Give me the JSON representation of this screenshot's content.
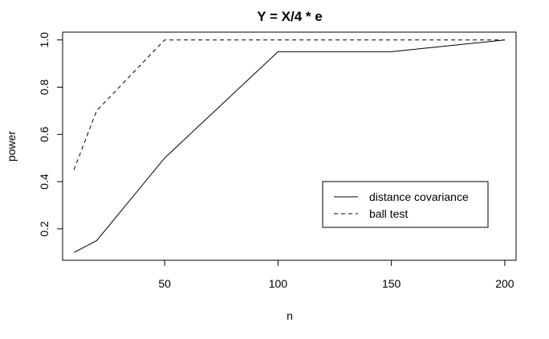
{
  "chart_data": {
    "type": "line",
    "title": "Y = X/4 * e",
    "xlabel": "n",
    "ylabel": "power",
    "xlim": [
      5,
      205
    ],
    "ylim": [
      0.067,
      1.033
    ],
    "x_ticks": [
      50,
      100,
      150,
      200
    ],
    "y_ticks": [
      0.2,
      0.4,
      0.6,
      0.8,
      1.0
    ],
    "x_tick_labels": [
      "50",
      "100",
      "150",
      "200"
    ],
    "y_tick_labels": [
      "0.2",
      "0.4",
      "0.6",
      "0.8",
      "1.0"
    ],
    "grid": false,
    "legend_position": "bottom-right",
    "series": [
      {
        "name": "distance covariance",
        "line_style": "solid",
        "color": "#000000",
        "x": [
          10,
          20,
          50,
          100,
          150,
          200
        ],
        "y": [
          0.1,
          0.15,
          0.5,
          0.95,
          0.95,
          1.0
        ]
      },
      {
        "name": "ball test",
        "line_style": "dashed",
        "color": "#000000",
        "x": [
          10,
          20,
          50,
          100,
          150,
          200
        ],
        "y": [
          0.45,
          0.7,
          1.0,
          1.0,
          1.0,
          1.0
        ]
      }
    ]
  }
}
